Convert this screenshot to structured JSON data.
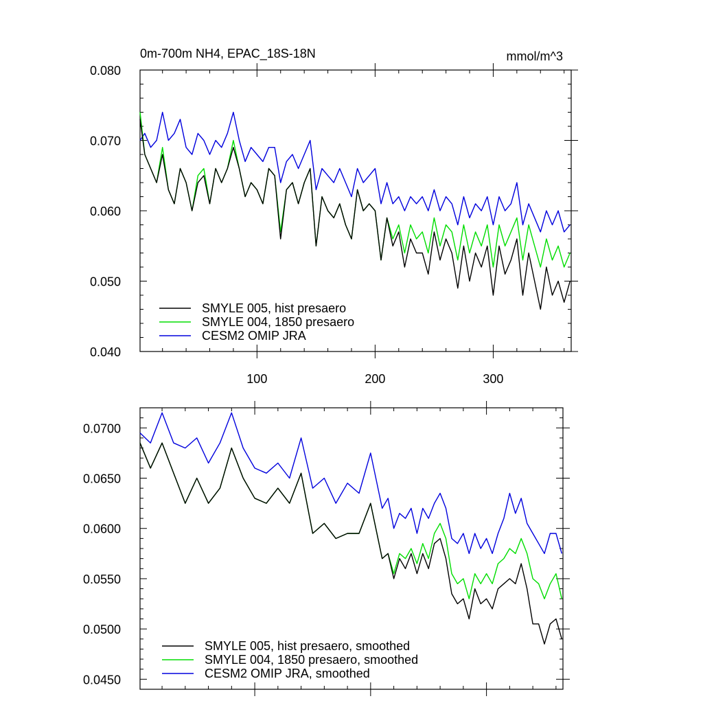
{
  "chart_data": [
    {
      "type": "line",
      "title": "0m-700m NH4, EPAC_18S-18N",
      "units_label": "mmol/m^3",
      "xlim": [
        1,
        366
      ],
      "ylim": [
        0.04,
        0.08
      ],
      "xticks": [
        100,
        200,
        300
      ],
      "xtick_labels": [
        "100",
        "200",
        "300"
      ],
      "yticks": [
        0.04,
        0.05,
        0.06,
        0.07,
        0.08
      ],
      "ytick_labels": [
        "0.040",
        "0.050",
        "0.060",
        "0.070",
        "0.080"
      ],
      "legend_position": "bottom-left",
      "series": [
        {
          "name": "SMYLE 005, hist presaero",
          "color": "#000000",
          "x": [
            1,
            5,
            10,
            15,
            20,
            25,
            30,
            35,
            40,
            45,
            50,
            55,
            60,
            65,
            70,
            75,
            80,
            85,
            90,
            95,
            100,
            105,
            110,
            115,
            120,
            125,
            130,
            135,
            140,
            145,
            150,
            155,
            160,
            165,
            170,
            175,
            180,
            185,
            190,
            195,
            200,
            205,
            210,
            215,
            220,
            225,
            230,
            235,
            240,
            245,
            250,
            255,
            260,
            265,
            270,
            275,
            280,
            285,
            290,
            295,
            300,
            305,
            310,
            315,
            320,
            325,
            330,
            335,
            340,
            345,
            350,
            355,
            360,
            365
          ],
          "values": [
            0.073,
            0.068,
            0.066,
            0.064,
            0.068,
            0.063,
            0.061,
            0.066,
            0.064,
            0.06,
            0.064,
            0.065,
            0.061,
            0.066,
            0.064,
            0.066,
            0.069,
            0.066,
            0.062,
            0.064,
            0.063,
            0.061,
            0.066,
            0.065,
            0.056,
            0.063,
            0.064,
            0.061,
            0.064,
            0.066,
            0.055,
            0.062,
            0.06,
            0.059,
            0.061,
            0.058,
            0.056,
            0.063,
            0.06,
            0.061,
            0.06,
            0.053,
            0.059,
            0.055,
            0.057,
            0.052,
            0.056,
            0.054,
            0.054,
            0.051,
            0.057,
            0.053,
            0.056,
            0.054,
            0.049,
            0.055,
            0.05,
            0.054,
            0.052,
            0.055,
            0.048,
            0.055,
            0.051,
            0.053,
            0.056,
            0.048,
            0.054,
            0.05,
            0.046,
            0.052,
            0.048,
            0.05,
            0.047,
            0.05
          ]
        },
        {
          "name": "SMYLE 004, 1850 presaero",
          "color": "#00dd00",
          "x": [
            1,
            5,
            10,
            15,
            20,
            25,
            30,
            35,
            40,
            45,
            50,
            55,
            60,
            65,
            70,
            75,
            80,
            85,
            90,
            95,
            100,
            105,
            110,
            115,
            120,
            125,
            130,
            135,
            140,
            145,
            150,
            155,
            160,
            165,
            170,
            175,
            180,
            185,
            190,
            195,
            200,
            205,
            210,
            215,
            220,
            225,
            230,
            235,
            240,
            245,
            250,
            255,
            260,
            265,
            270,
            275,
            280,
            285,
            290,
            295,
            300,
            305,
            310,
            315,
            320,
            325,
            330,
            335,
            340,
            345,
            350,
            355,
            360,
            365
          ],
          "values": [
            0.074,
            0.068,
            0.066,
            0.064,
            0.069,
            0.063,
            0.061,
            0.066,
            0.064,
            0.06,
            0.065,
            0.066,
            0.061,
            0.066,
            0.064,
            0.066,
            0.07,
            0.066,
            0.062,
            0.064,
            0.063,
            0.061,
            0.066,
            0.065,
            0.057,
            0.063,
            0.064,
            0.061,
            0.064,
            0.066,
            0.055,
            0.062,
            0.06,
            0.059,
            0.061,
            0.058,
            0.056,
            0.063,
            0.06,
            0.061,
            0.06,
            0.053,
            0.059,
            0.056,
            0.058,
            0.054,
            0.058,
            0.056,
            0.057,
            0.054,
            0.059,
            0.055,
            0.058,
            0.057,
            0.053,
            0.058,
            0.054,
            0.057,
            0.055,
            0.058,
            0.052,
            0.058,
            0.055,
            0.057,
            0.059,
            0.053,
            0.058,
            0.055,
            0.052,
            0.056,
            0.053,
            0.055,
            0.052,
            0.054
          ]
        },
        {
          "name": "CESM2 OMIP JRA",
          "color": "#0000dd",
          "x": [
            1,
            5,
            10,
            15,
            20,
            25,
            30,
            35,
            40,
            45,
            50,
            55,
            60,
            65,
            70,
            75,
            80,
            85,
            90,
            95,
            100,
            105,
            110,
            115,
            120,
            125,
            130,
            135,
            140,
            145,
            150,
            155,
            160,
            165,
            170,
            175,
            180,
            185,
            190,
            195,
            200,
            205,
            210,
            215,
            220,
            225,
            230,
            235,
            240,
            245,
            250,
            255,
            260,
            265,
            270,
            275,
            280,
            285,
            290,
            295,
            300,
            305,
            310,
            315,
            320,
            325,
            330,
            335,
            340,
            345,
            350,
            355,
            360,
            365
          ],
          "values": [
            0.07,
            0.071,
            0.069,
            0.07,
            0.074,
            0.07,
            0.071,
            0.073,
            0.069,
            0.068,
            0.071,
            0.07,
            0.068,
            0.07,
            0.069,
            0.071,
            0.074,
            0.07,
            0.067,
            0.069,
            0.068,
            0.067,
            0.069,
            0.069,
            0.064,
            0.067,
            0.068,
            0.066,
            0.068,
            0.07,
            0.063,
            0.066,
            0.065,
            0.064,
            0.066,
            0.064,
            0.062,
            0.066,
            0.064,
            0.065,
            0.066,
            0.061,
            0.064,
            0.061,
            0.062,
            0.06,
            0.062,
            0.061,
            0.062,
            0.06,
            0.063,
            0.06,
            0.062,
            0.061,
            0.058,
            0.062,
            0.059,
            0.061,
            0.06,
            0.062,
            0.058,
            0.062,
            0.06,
            0.061,
            0.064,
            0.058,
            0.061,
            0.059,
            0.057,
            0.06,
            0.058,
            0.06,
            0.057,
            0.058
          ]
        }
      ]
    },
    {
      "type": "line",
      "title": "",
      "xlim": [
        1,
        366
      ],
      "ylim": [
        0.044,
        0.072
      ],
      "xticks": [
        100,
        200,
        300
      ],
      "xtick_labels": [],
      "yticks": [
        0.045,
        0.05,
        0.055,
        0.06,
        0.065,
        0.07
      ],
      "ytick_labels": [
        "0.0450",
        "0.0500",
        "0.0550",
        "0.0600",
        "0.0650",
        "0.0700"
      ],
      "legend_position": "bottom-left",
      "series": [
        {
          "name": "SMYLE 005, hist presaero, smoothed",
          "color": "#000000",
          "x": [
            1,
            10,
            20,
            30,
            40,
            50,
            60,
            70,
            80,
            90,
            100,
            110,
            120,
            130,
            140,
            150,
            160,
            170,
            180,
            190,
            200,
            210,
            215,
            220,
            225,
            230,
            235,
            240,
            245,
            250,
            255,
            260,
            265,
            270,
            275,
            280,
            285,
            290,
            295,
            300,
            305,
            310,
            315,
            320,
            325,
            330,
            335,
            340,
            345,
            350,
            355,
            360,
            365
          ],
          "values": [
            0.0685,
            0.066,
            0.0685,
            0.0655,
            0.0625,
            0.065,
            0.0625,
            0.064,
            0.068,
            0.065,
            0.063,
            0.0625,
            0.064,
            0.0625,
            0.0655,
            0.0595,
            0.0605,
            0.059,
            0.0595,
            0.0595,
            0.0625,
            0.057,
            0.0575,
            0.055,
            0.057,
            0.056,
            0.0575,
            0.0555,
            0.0575,
            0.056,
            0.0585,
            0.059,
            0.057,
            0.0535,
            0.0525,
            0.053,
            0.051,
            0.054,
            0.0525,
            0.053,
            0.052,
            0.054,
            0.0545,
            0.055,
            0.0545,
            0.0565,
            0.054,
            0.0505,
            0.0505,
            0.0485,
            0.0505,
            0.051,
            0.049
          ]
        },
        {
          "name": "SMYLE 004, 1850 presaero, smoothed",
          "color": "#00dd00",
          "x": [
            1,
            10,
            20,
            30,
            40,
            50,
            60,
            70,
            80,
            90,
            100,
            110,
            120,
            130,
            140,
            150,
            160,
            170,
            180,
            190,
            200,
            210,
            215,
            220,
            225,
            230,
            235,
            240,
            245,
            250,
            255,
            260,
            265,
            270,
            275,
            280,
            285,
            290,
            295,
            300,
            305,
            310,
            315,
            320,
            325,
            330,
            335,
            340,
            345,
            350,
            355,
            360,
            365
          ],
          "values": [
            0.0685,
            0.066,
            0.0685,
            0.0655,
            0.0625,
            0.065,
            0.0625,
            0.064,
            0.068,
            0.065,
            0.063,
            0.0625,
            0.064,
            0.0625,
            0.0655,
            0.0595,
            0.0605,
            0.059,
            0.0595,
            0.0595,
            0.0625,
            0.057,
            0.0575,
            0.0555,
            0.0575,
            0.057,
            0.058,
            0.0565,
            0.0585,
            0.057,
            0.0595,
            0.0605,
            0.059,
            0.0555,
            0.0545,
            0.055,
            0.053,
            0.0555,
            0.0545,
            0.0555,
            0.0545,
            0.0565,
            0.057,
            0.058,
            0.0575,
            0.059,
            0.0575,
            0.055,
            0.0545,
            0.053,
            0.0545,
            0.0555,
            0.053
          ]
        },
        {
          "name": "CESM2 OMIP JRA, smoothed",
          "color": "#0000dd",
          "x": [
            1,
            10,
            20,
            30,
            40,
            50,
            60,
            70,
            80,
            90,
            100,
            110,
            120,
            130,
            140,
            150,
            160,
            170,
            180,
            190,
            200,
            210,
            215,
            220,
            225,
            230,
            235,
            240,
            245,
            250,
            255,
            260,
            265,
            270,
            275,
            280,
            285,
            290,
            295,
            300,
            305,
            310,
            315,
            320,
            325,
            330,
            335,
            340,
            345,
            350,
            355,
            360,
            365
          ],
          "values": [
            0.0695,
            0.0685,
            0.0715,
            0.0685,
            0.068,
            0.069,
            0.0665,
            0.0685,
            0.0715,
            0.068,
            0.066,
            0.0655,
            0.0665,
            0.065,
            0.069,
            0.064,
            0.065,
            0.0625,
            0.0645,
            0.0635,
            0.0675,
            0.062,
            0.063,
            0.06,
            0.0615,
            0.061,
            0.062,
            0.0595,
            0.062,
            0.061,
            0.0625,
            0.0635,
            0.062,
            0.059,
            0.0585,
            0.0595,
            0.0575,
            0.0595,
            0.058,
            0.059,
            0.0575,
            0.0595,
            0.061,
            0.0635,
            0.0615,
            0.063,
            0.0605,
            0.0595,
            0.0585,
            0.0575,
            0.0595,
            0.0595,
            0.0575
          ]
        }
      ]
    }
  ]
}
